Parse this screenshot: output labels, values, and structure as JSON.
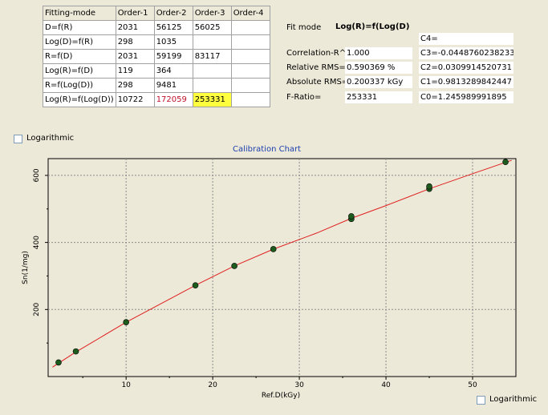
{
  "table": {
    "headers": [
      "Fitting-mode",
      "Order-1",
      "Order-2",
      "Order-3",
      "Order-4"
    ],
    "rows": [
      [
        "D=f(R)",
        "2031",
        "56125",
        "56025",
        ""
      ],
      [
        "Log(D)=f(R)",
        "298",
        "1035",
        "",
        ""
      ],
      [
        "R=f(D)",
        "2031",
        "59199",
        "83117",
        ""
      ],
      [
        "Log(R)=f(D)",
        "119",
        "364",
        "",
        ""
      ],
      [
        "R=f(Log(D))",
        "298",
        "9481",
        "",
        ""
      ],
      [
        "Log(R)=f(Log(D))",
        "10722",
        "172059",
        "253331",
        ""
      ]
    ]
  },
  "fit": {
    "mode_label": "Fit mode",
    "mode_value": "Log(R)=f(Log(D)",
    "correlation_label": "Correlation-R^2=",
    "correlation_value": "1.000",
    "rel_rms_label": "Relative RMS=",
    "rel_rms_value": "0.590369 %",
    "abs_rms_label": "Absolute RMS=",
    "abs_rms_value": "0.200337 kGy",
    "fratio_label": "F-Ratio=",
    "fratio_value": "253331",
    "c4": "C4=",
    "c3": "C3=-0.0448760238233",
    "c2": "C2=0.0309914520731",
    "c1": "C1=0.9813289842447",
    "c0": "C0=1.245989991895"
  },
  "logarithmic_top_label": "Logarithmic",
  "logarithmic_bottom_label": "Logarithmic",
  "colors": {
    "curve": "#e02020",
    "point": "#1e5c1e",
    "title": "#1c3fb0"
  },
  "chart_data": {
    "type": "scatter",
    "title": "Calibration Chart",
    "xlabel": "Ref.D(kGy)",
    "ylabel": "Sn(1/mg)",
    "xlim": [
      1,
      55
    ],
    "ylim": [
      0,
      650
    ],
    "xticks": [
      10,
      20,
      30,
      40,
      50
    ],
    "yticks": [
      200,
      400,
      600
    ],
    "grid": true,
    "points": [
      {
        "x": 2.2,
        "y": 42
      },
      {
        "x": 4.2,
        "y": 75
      },
      {
        "x": 10,
        "y": 162
      },
      {
        "x": 18,
        "y": 272
      },
      {
        "x": 22.5,
        "y": 330
      },
      {
        "x": 27,
        "y": 380
      },
      {
        "x": 36,
        "y": 470
      },
      {
        "x": 36,
        "y": 478
      },
      {
        "x": 45,
        "y": 560
      },
      {
        "x": 45,
        "y": 567
      },
      {
        "x": 53.8,
        "y": 640
      }
    ],
    "fit_curve": [
      [
        1.5,
        28
      ],
      [
        4,
        70
      ],
      [
        10,
        162
      ],
      [
        18,
        272
      ],
      [
        22.5,
        330
      ],
      [
        27,
        380
      ],
      [
        32,
        428
      ],
      [
        36,
        472
      ],
      [
        40,
        510
      ],
      [
        45,
        560
      ],
      [
        50,
        605
      ],
      [
        54.5,
        645
      ]
    ]
  }
}
